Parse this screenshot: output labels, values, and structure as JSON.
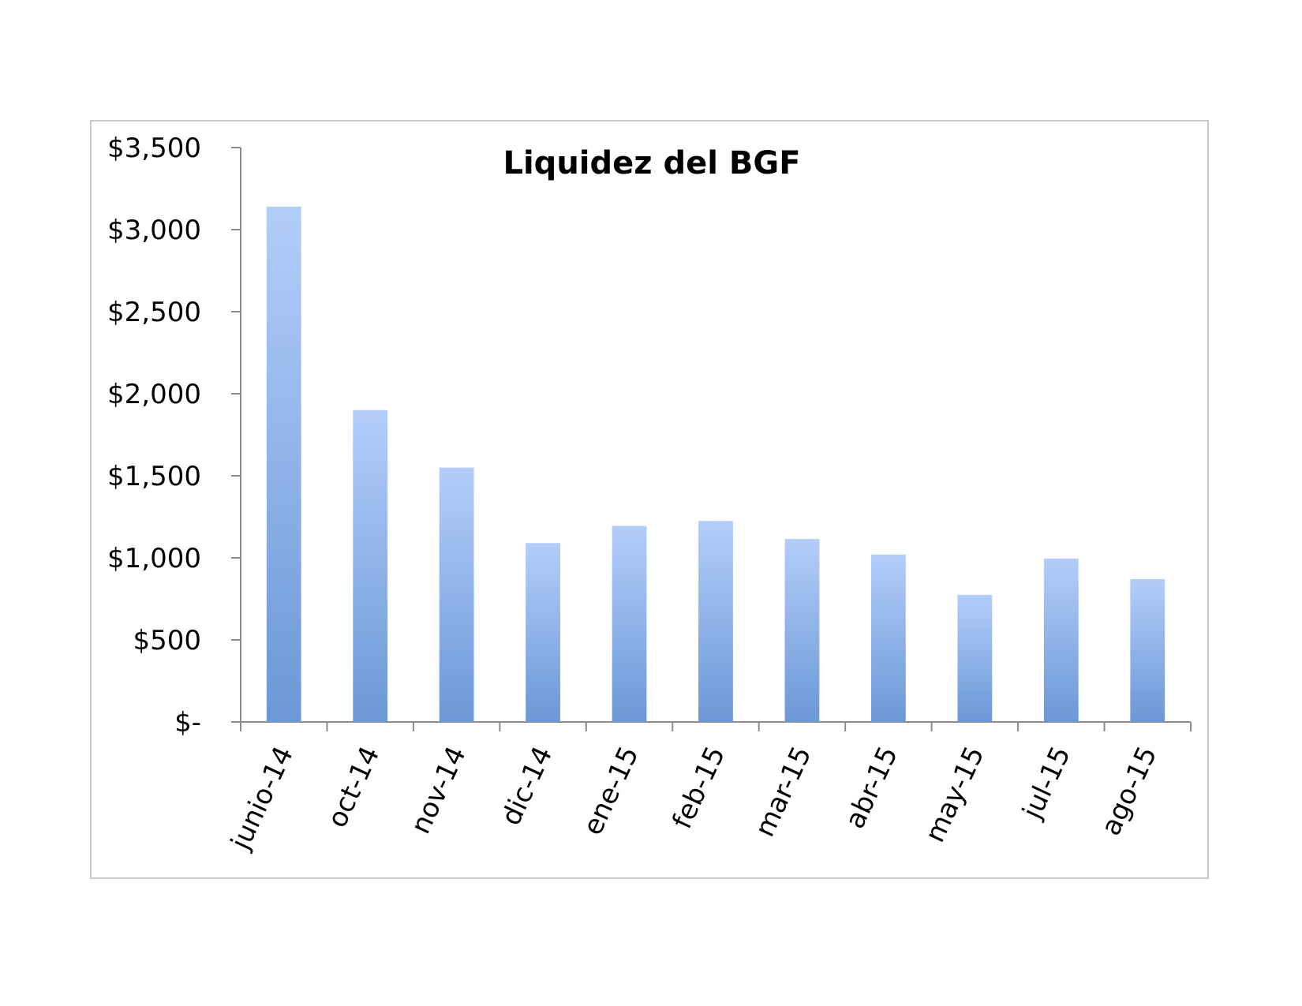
{
  "chart_data": {
    "type": "bar",
    "title": "Liquidez del BGF",
    "xlabel": "",
    "ylabel": "",
    "categories": [
      "junio-14",
      "oct-14",
      "nov-14",
      "dic-14",
      "ene-15",
      "feb-15",
      "mar-15",
      "abr-15",
      "may-15",
      "jul-15",
      "ago-15"
    ],
    "values": [
      3140,
      1900,
      1550,
      1090,
      1195,
      1225,
      1115,
      1020,
      775,
      995,
      870
    ],
    "ylim": [
      0,
      3500
    ],
    "y_ticks": [
      0,
      500,
      1000,
      1500,
      2000,
      2500,
      3000,
      3500
    ],
    "y_tick_labels": [
      "$-",
      "$500",
      "$1,000",
      "$1,500",
      "$2,000",
      "$2,500",
      "$3,000",
      "$3,500"
    ],
    "grid": false,
    "legend": "none",
    "colors": {
      "bar_top": "#b3cdfa",
      "bar_bottom": "#6b98d6",
      "axis": "#8c8c8c",
      "frame": "#c8c8c8"
    }
  }
}
